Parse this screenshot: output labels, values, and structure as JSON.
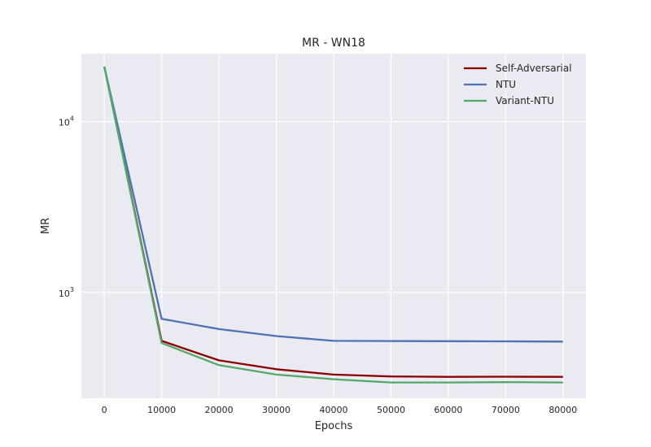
{
  "chart_data": {
    "type": "line",
    "title": "MR - WN18",
    "xlabel": "Epochs",
    "ylabel": "MR",
    "yscale": "log",
    "xlim": [
      -4000,
      84000
    ],
    "ylim": [
      240,
      25000
    ],
    "grid": true,
    "legend_position": "top-right",
    "x": [
      0,
      10000,
      20000,
      30000,
      40000,
      50000,
      60000,
      70000,
      80000
    ],
    "x_ticks": [
      0,
      10000,
      20000,
      30000,
      40000,
      50000,
      60000,
      70000,
      80000
    ],
    "x_tick_labels": [
      "0",
      "10000",
      "20000",
      "30000",
      "40000",
      "50000",
      "60000",
      "70000",
      "80000"
    ],
    "y_ticks": [
      {
        "value": 1000,
        "label_base": "10",
        "label_exp": "3"
      },
      {
        "value": 10000,
        "label_base": "10",
        "label_exp": "4"
      }
    ],
    "series": [
      {
        "name": "Self-Adversarial",
        "color": "#8b0000",
        "values": [
          21000,
          520,
          400,
          355,
          330,
          322,
          320,
          321,
          320
        ]
      },
      {
        "name": "NTU",
        "color": "#4c72b0",
        "values": [
          21000,
          700,
          610,
          555,
          520,
          519,
          518,
          517,
          515
        ]
      },
      {
        "name": "Variant-NTU",
        "color": "#55a868",
        "values": [
          21000,
          505,
          375,
          330,
          310,
          297,
          297,
          298,
          297
        ]
      }
    ]
  },
  "colors": {
    "plot_background": "#eaeaf2",
    "grid": "#ffffff"
  }
}
